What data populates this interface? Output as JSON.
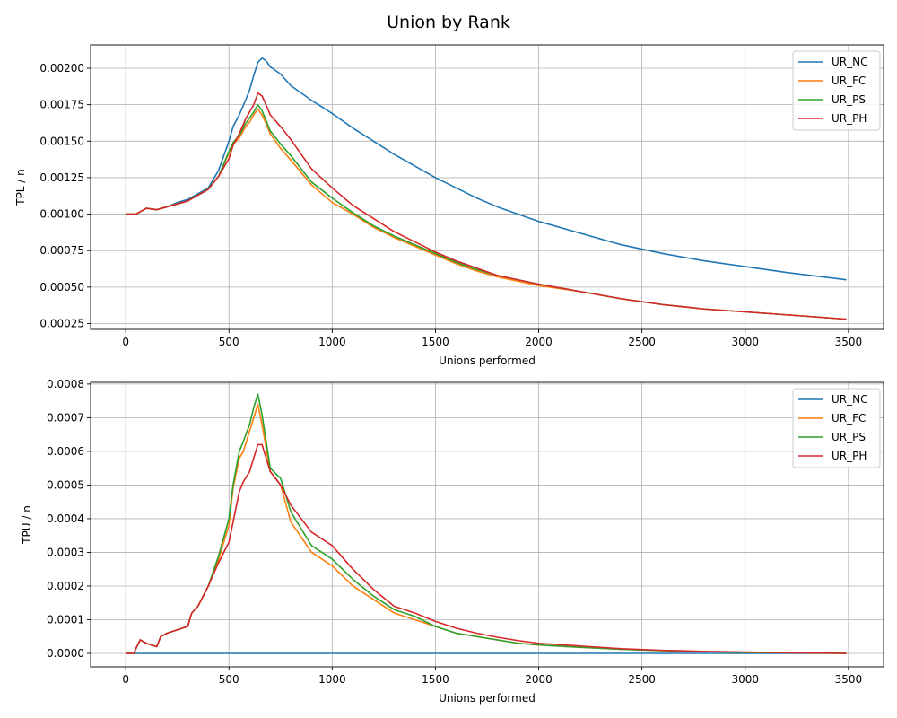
{
  "title": "Union by Rank",
  "colors": {
    "UR_NC": "#1f77b4",
    "UR_FC": "#ff7f0e",
    "UR_PS": "#2ca02c",
    "UR_PH": "#d62728"
  },
  "chart_data": [
    {
      "type": "line",
      "xlabel": "Unions performed",
      "ylabel": "TPL / n",
      "xlim": [
        -170,
        3670
      ],
      "ylim": [
        0.00021,
        0.00216
      ],
      "xticks": [
        0,
        500,
        1000,
        1500,
        2000,
        2500,
        3000,
        3500
      ],
      "yticks": [
        0.00025,
        0.0005,
        0.00075,
        0.001,
        0.00125,
        0.0015,
        0.00175,
        0.002
      ],
      "ytick_labels": [
        "0.00025",
        "0.00050",
        "0.00075",
        "0.00100",
        "0.00125",
        "0.00150",
        "0.00175",
        "0.00200"
      ],
      "grid": true,
      "legend": "top-right",
      "series": [
        {
          "name": "UR_NC",
          "x": [
            0,
            50,
            100,
            150,
            200,
            250,
            300,
            350,
            400,
            450,
            500,
            520,
            550,
            580,
            600,
            620,
            640,
            660,
            680,
            700,
            750,
            800,
            900,
            1000,
            1100,
            1200,
            1300,
            1400,
            1500,
            1600,
            1700,
            1800,
            1900,
            2000,
            2200,
            2400,
            2600,
            2800,
            3000,
            3200,
            3490
          ],
          "y": [
            0.001,
            0.001,
            0.00104,
            0.00103,
            0.00105,
            0.00108,
            0.0011,
            0.00114,
            0.00118,
            0.0013,
            0.0015,
            0.0016,
            0.00168,
            0.00178,
            0.00185,
            0.00195,
            0.00204,
            0.00207,
            0.00205,
            0.00201,
            0.00196,
            0.00188,
            0.00178,
            0.00169,
            0.00159,
            0.0015,
            0.00141,
            0.00133,
            0.00125,
            0.00118,
            0.00111,
            0.00105,
            0.001,
            0.00095,
            0.00087,
            0.00079,
            0.00073,
            0.00068,
            0.00064,
            0.0006,
            0.00055
          ]
        },
        {
          "name": "UR_FC",
          "x": [
            0,
            50,
            100,
            150,
            200,
            250,
            300,
            350,
            400,
            450,
            500,
            520,
            550,
            580,
            600,
            620,
            640,
            660,
            680,
            700,
            750,
            800,
            900,
            1000,
            1100,
            1200,
            1300,
            1400,
            1500,
            1600,
            1700,
            1800,
            1900,
            2000,
            2200,
            2400,
            2600,
            2800,
            3000,
            3200,
            3490
          ],
          "y": [
            0.001,
            0.001,
            0.00104,
            0.00103,
            0.00105,
            0.00107,
            0.00109,
            0.00113,
            0.00117,
            0.00126,
            0.00142,
            0.00148,
            0.00152,
            0.0016,
            0.00163,
            0.00168,
            0.00172,
            0.00168,
            0.00162,
            0.00155,
            0.00145,
            0.00137,
            0.0012,
            0.00108,
            0.001,
            0.00091,
            0.00084,
            0.00078,
            0.00072,
            0.00066,
            0.00061,
            0.00057,
            0.00054,
            0.00051,
            0.00047,
            0.00042,
            0.00038,
            0.00035,
            0.00033,
            0.00031,
            0.00028
          ]
        },
        {
          "name": "UR_PS",
          "x": [
            0,
            50,
            100,
            150,
            200,
            250,
            300,
            350,
            400,
            450,
            500,
            520,
            550,
            580,
            600,
            620,
            640,
            660,
            680,
            700,
            750,
            800,
            900,
            1000,
            1100,
            1200,
            1300,
            1400,
            1500,
            1600,
            1700,
            1800,
            1900,
            2000,
            2200,
            2400,
            2600,
            2800,
            3000,
            3200,
            3490
          ],
          "y": [
            0.001,
            0.001,
            0.00104,
            0.00103,
            0.00105,
            0.00107,
            0.00109,
            0.00113,
            0.00117,
            0.00126,
            0.00143,
            0.00149,
            0.00154,
            0.00162,
            0.00166,
            0.0017,
            0.00175,
            0.00171,
            0.00164,
            0.00157,
            0.00148,
            0.0014,
            0.00122,
            0.00111,
            0.00101,
            0.00092,
            0.00085,
            0.00079,
            0.00073,
            0.00067,
            0.00062,
            0.00058,
            0.00055,
            0.00052,
            0.00047,
            0.00042,
            0.00038,
            0.00035,
            0.00033,
            0.00031,
            0.00028
          ]
        },
        {
          "name": "UR_PH",
          "x": [
            0,
            50,
            100,
            150,
            200,
            250,
            300,
            350,
            400,
            450,
            500,
            520,
            550,
            580,
            600,
            620,
            640,
            660,
            680,
            700,
            750,
            800,
            900,
            1000,
            1100,
            1200,
            1300,
            1400,
            1500,
            1600,
            1700,
            1800,
            1900,
            2000,
            2200,
            2400,
            2600,
            2800,
            3000,
            3200,
            3490
          ],
          "y": [
            0.001,
            0.001,
            0.00104,
            0.00103,
            0.00105,
            0.00107,
            0.00109,
            0.00113,
            0.00117,
            0.00126,
            0.00138,
            0.00147,
            0.00155,
            0.00165,
            0.0017,
            0.00175,
            0.00183,
            0.00181,
            0.00175,
            0.00168,
            0.0016,
            0.00151,
            0.00131,
            0.00118,
            0.00106,
            0.00097,
            0.00088,
            0.00081,
            0.00074,
            0.00068,
            0.00063,
            0.00058,
            0.00055,
            0.00052,
            0.00047,
            0.00042,
            0.00038,
            0.00035,
            0.00033,
            0.00031,
            0.00028
          ]
        }
      ]
    },
    {
      "type": "line",
      "xlabel": "Unions performed",
      "ylabel": "TPU / n",
      "xlim": [
        -170,
        3670
      ],
      "ylim": [
        -4e-05,
        0.000805
      ],
      "xticks": [
        0,
        500,
        1000,
        1500,
        2000,
        2500,
        3000,
        3500
      ],
      "yticks": [
        0,
        0.0001,
        0.0002,
        0.0003,
        0.0004,
        0.0005,
        0.0006,
        0.0007,
        0.0008
      ],
      "ytick_labels": [
        "0.0000",
        "0.0001",
        "0.0002",
        "0.0003",
        "0.0004",
        "0.0005",
        "0.0006",
        "0.0007",
        "0.0008"
      ],
      "grid": true,
      "legend": "top-right",
      "series": [
        {
          "name": "UR_NC",
          "x": [
            0,
            3490
          ],
          "y": [
            0,
            0
          ]
        },
        {
          "name": "UR_FC",
          "x": [
            0,
            40,
            50,
            70,
            100,
            150,
            170,
            200,
            250,
            300,
            320,
            350,
            400,
            450,
            500,
            520,
            550,
            570,
            600,
            620,
            640,
            660,
            680,
            700,
            750,
            800,
            900,
            1000,
            1100,
            1200,
            1300,
            1400,
            1500,
            1600,
            1700,
            1800,
            1900,
            2000,
            2200,
            2400,
            2600,
            2800,
            3000,
            3200,
            3490
          ],
          "y": [
            0,
            0,
            1.5e-05,
            4e-05,
            3e-05,
            2e-05,
            5e-05,
            6e-05,
            7e-05,
            8e-05,
            0.00012,
            0.00014,
            0.0002,
            0.00028,
            0.00038,
            0.00049,
            0.00058,
            0.0006,
            0.00066,
            0.0007,
            0.00074,
            0.00068,
            0.00061,
            0.00054,
            0.0005,
            0.00039,
            0.0003,
            0.00026,
            0.0002,
            0.00016,
            0.00012,
            0.0001,
            8e-05,
            6e-05,
            5e-05,
            4e-05,
            3e-05,
            2.5e-05,
            1.8e-05,
            1.2e-05,
            8e-06,
            5e-06,
            3e-06,
            2e-06,
            0
          ]
        },
        {
          "name": "UR_PS",
          "x": [
            0,
            40,
            50,
            70,
            100,
            150,
            170,
            200,
            250,
            300,
            320,
            350,
            400,
            450,
            500,
            520,
            550,
            570,
            600,
            620,
            640,
            660,
            680,
            700,
            750,
            800,
            900,
            1000,
            1100,
            1200,
            1300,
            1400,
            1500,
            1600,
            1700,
            1800,
            1900,
            2000,
            2200,
            2400,
            2600,
            2800,
            3000,
            3200,
            3490
          ],
          "y": [
            0,
            0,
            1.5e-05,
            4e-05,
            3e-05,
            2e-05,
            5e-05,
            6e-05,
            7e-05,
            8e-05,
            0.00012,
            0.00014,
            0.0002,
            0.00029,
            0.0004,
            0.0005,
            0.0006,
            0.00063,
            0.00068,
            0.00073,
            0.00077,
            0.00071,
            0.00063,
            0.00055,
            0.00052,
            0.00042,
            0.00032,
            0.00028,
            0.00022,
            0.00017,
            0.00013,
            0.00011,
            8e-05,
            6e-05,
            5e-05,
            4e-05,
            3e-05,
            2.5e-05,
            1.8e-05,
            1.2e-05,
            8e-06,
            5e-06,
            3e-06,
            2e-06,
            0
          ]
        },
        {
          "name": "UR_PH",
          "x": [
            0,
            40,
            50,
            70,
            100,
            150,
            170,
            200,
            250,
            300,
            320,
            350,
            400,
            450,
            500,
            520,
            550,
            570,
            600,
            620,
            640,
            660,
            680,
            700,
            750,
            800,
            900,
            1000,
            1100,
            1200,
            1300,
            1400,
            1500,
            1600,
            1700,
            1800,
            1900,
            2000,
            2200,
            2400,
            2600,
            2800,
            3000,
            3200,
            3490
          ],
          "y": [
            0,
            0,
            1.5e-05,
            4e-05,
            3e-05,
            2e-05,
            5e-05,
            6e-05,
            7e-05,
            8e-05,
            0.00012,
            0.00014,
            0.0002,
            0.00027,
            0.00033,
            0.00039,
            0.00048,
            0.00051,
            0.00054,
            0.00058,
            0.00062,
            0.00062,
            0.00058,
            0.00054,
            0.0005,
            0.00044,
            0.00036,
            0.00032,
            0.00025,
            0.00019,
            0.00014,
            0.00012,
            9.5e-05,
            7.5e-05,
            6e-05,
            4.8e-05,
            3.8e-05,
            3e-05,
            2.2e-05,
            1.4e-05,
            9e-06,
            6e-06,
            4e-06,
            2e-06,
            0
          ]
        }
      ]
    }
  ]
}
